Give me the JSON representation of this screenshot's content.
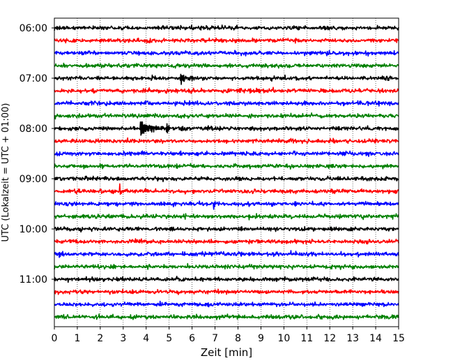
{
  "chart_data": {
    "type": "line",
    "subtype": "helicorder",
    "xlabel": "Zeit  [min]",
    "ylabel": "UTC (Lokalzeit = UTC + 01:00)",
    "xlim": [
      0,
      15
    ],
    "x_ticks": [
      0,
      1,
      2,
      3,
      4,
      5,
      6,
      7,
      8,
      9,
      10,
      11,
      12,
      13,
      14,
      15
    ],
    "x_grid": "dotted vertical at each minute",
    "trace_interval_minutes": 15,
    "y_tick_labels": [
      "06:00",
      "07:00",
      "08:00",
      "09:00",
      "10:00",
      "11:00"
    ],
    "trace_color_cycle": [
      "#000000",
      "#ff0000",
      "#0000ff",
      "#008000"
    ],
    "traces": [
      {
        "start": "06:00",
        "color": "#000000"
      },
      {
        "start": "06:15",
        "color": "#ff0000"
      },
      {
        "start": "06:30",
        "color": "#0000ff"
      },
      {
        "start": "06:45",
        "color": "#008000"
      },
      {
        "start": "07:00",
        "color": "#000000",
        "events": [
          {
            "minute": 5.5,
            "amplitude": 1.8,
            "duration_min": 0.6
          }
        ]
      },
      {
        "start": "07:15",
        "color": "#ff0000"
      },
      {
        "start": "07:30",
        "color": "#0000ff"
      },
      {
        "start": "07:45",
        "color": "#008000"
      },
      {
        "start": "08:00",
        "color": "#000000",
        "events": [
          {
            "minute": 3.75,
            "amplitude": 2.4,
            "duration_min": 1.2
          },
          {
            "minute": 4.9,
            "amplitude": 1.4,
            "duration_min": 0.15
          }
        ]
      },
      {
        "start": "08:15",
        "color": "#ff0000"
      },
      {
        "start": "08:30",
        "color": "#0000ff"
      },
      {
        "start": "08:45",
        "color": "#008000"
      },
      {
        "start": "09:00",
        "color": "#000000"
      },
      {
        "start": "09:15",
        "color": "#ff0000",
        "events": [
          {
            "minute": 2.85,
            "amplitude": 3.0,
            "duration_min": 0.05
          }
        ]
      },
      {
        "start": "09:30",
        "color": "#0000ff",
        "events": [
          {
            "minute": 6.95,
            "amplitude": 1.6,
            "duration_min": 0.06
          }
        ]
      },
      {
        "start": "09:45",
        "color": "#008000"
      },
      {
        "start": "10:00",
        "color": "#000000"
      },
      {
        "start": "10:15",
        "color": "#ff0000"
      },
      {
        "start": "10:30",
        "color": "#0000ff"
      },
      {
        "start": "10:45",
        "color": "#008000"
      },
      {
        "start": "11:00",
        "color": "#000000"
      },
      {
        "start": "11:15",
        "color": "#ff0000"
      },
      {
        "start": "11:30",
        "color": "#0000ff"
      },
      {
        "start": "11:45",
        "color": "#008000"
      }
    ]
  }
}
